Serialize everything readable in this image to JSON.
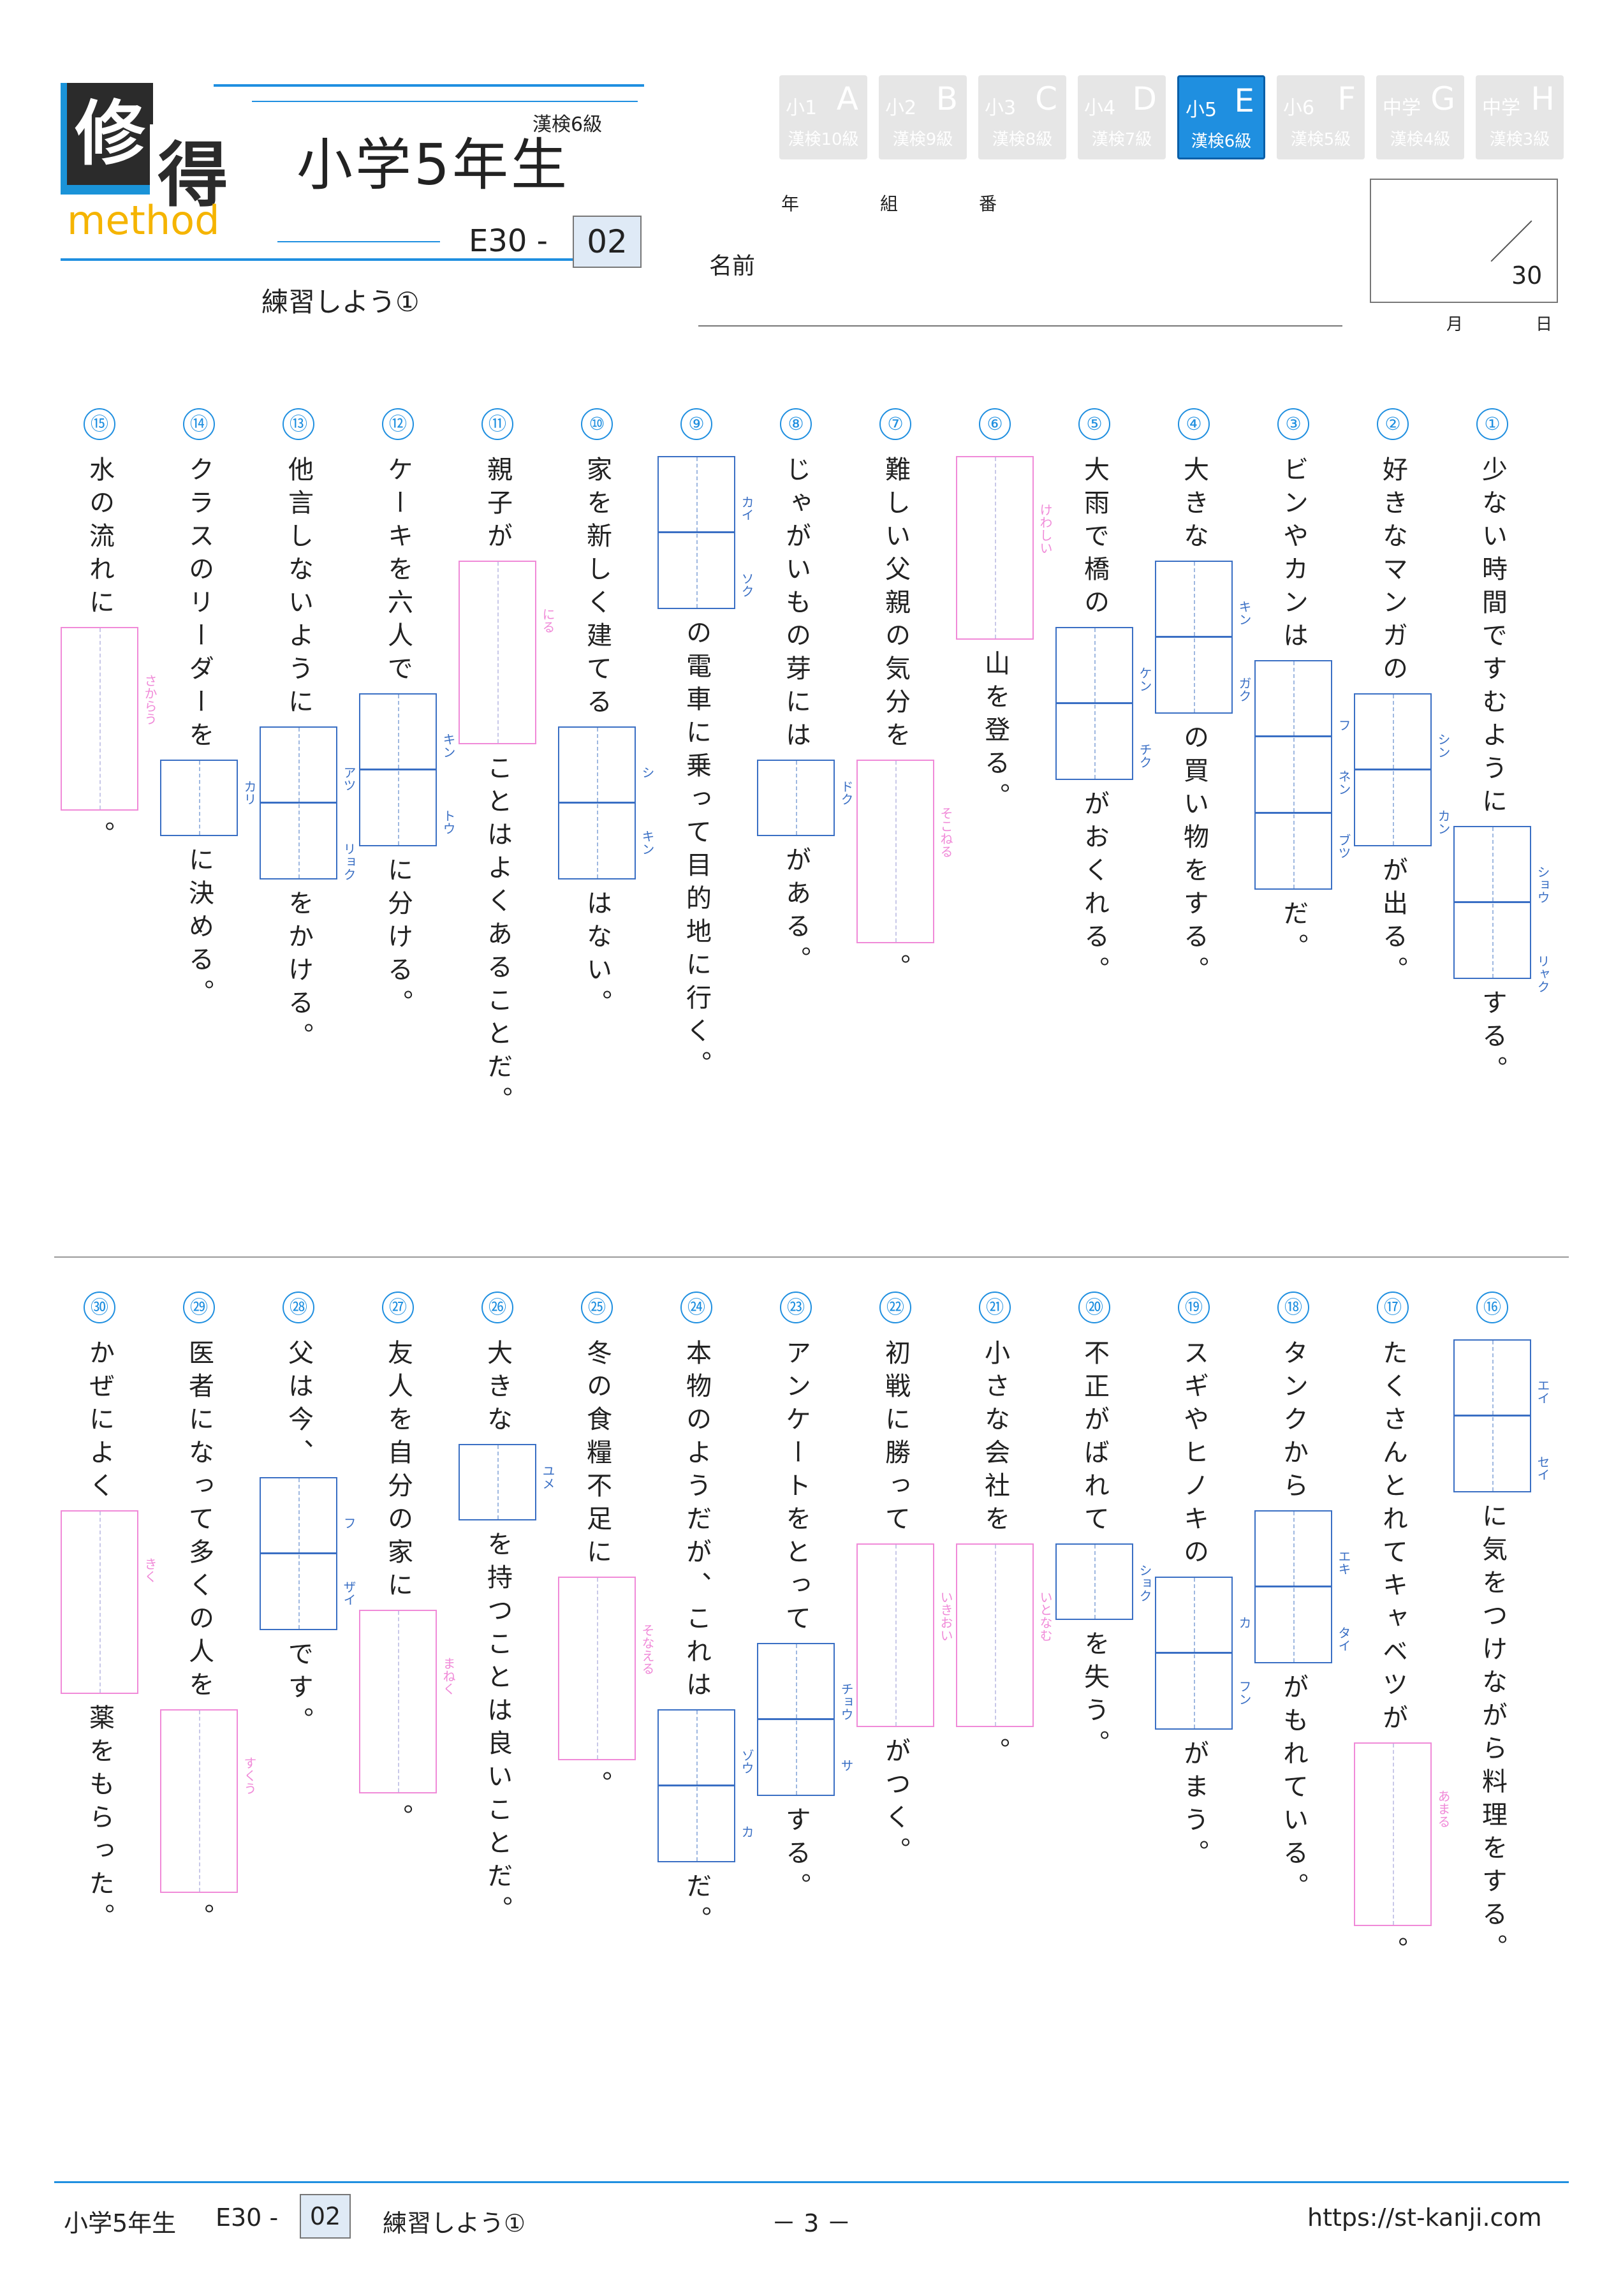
{
  "header": {
    "logo_k1": "修",
    "logo_k2": "得",
    "logo_word": "method",
    "kanken": "漢検6級",
    "grade": "小学5年生",
    "code": "E30 -",
    "code_num": "02",
    "subtitle": "練習しよう①",
    "levels": [
      {
        "g": "小1",
        "L": "A",
        "k": "漢検10級"
      },
      {
        "g": "小2",
        "L": "B",
        "k": "漢検9級"
      },
      {
        "g": "小3",
        "L": "C",
        "k": "漢検8級"
      },
      {
        "g": "小4",
        "L": "D",
        "k": "漢検7級"
      },
      {
        "g": "小5",
        "L": "E",
        "k": "漢検6級"
      },
      {
        "g": "小6",
        "L": "F",
        "k": "漢検5級"
      },
      {
        "g": "中学",
        "L": "G",
        "k": "漢検4級"
      },
      {
        "g": "中学",
        "L": "H",
        "k": "漢検3級"
      }
    ],
    "nen": "年",
    "kumi": "組",
    "ban": "番",
    "name_label": "名前",
    "score_total": "30",
    "month": "月",
    "day": "日"
  },
  "questions": [
    {
      "n": "①",
      "parts": [
        {
          "t": "少ない時間ですむように"
        },
        {
          "box": "k",
          "size": 2,
          "f": "ショウ　　　　リャク"
        },
        {
          "t": "する。"
        }
      ]
    },
    {
      "n": "②",
      "parts": [
        {
          "t": "好きなマンガの"
        },
        {
          "box": "k",
          "size": 2,
          "f": "シン　　　　カン"
        },
        {
          "t": "が出る。"
        }
      ]
    },
    {
      "n": "③",
      "parts": [
        {
          "t": "ビンやカンは"
        },
        {
          "box": "k",
          "size": 3,
          "f": "フ　　　ネン　　　ブツ"
        },
        {
          "t": "だ。"
        }
      ]
    },
    {
      "n": "④",
      "parts": [
        {
          "t": "大きな"
        },
        {
          "box": "k",
          "size": 2,
          "f": "キン　　　　ガク"
        },
        {
          "t": "の買い物をする。"
        }
      ]
    },
    {
      "n": "⑤",
      "parts": [
        {
          "t": "大雨で橋の"
        },
        {
          "box": "k",
          "size": 2,
          "f": "ケン　　　　チク"
        },
        {
          "t": "がおくれる。"
        }
      ]
    },
    {
      "n": "⑥",
      "parts": [
        {
          "box": "h",
          "size": 2.4,
          "f": "けわしい"
        },
        {
          "t": "山を登る。"
        }
      ]
    },
    {
      "n": "⑦",
      "parts": [
        {
          "t": "難しい父親の気分を"
        },
        {
          "box": "h",
          "size": 2.4,
          "f": "そこねる"
        },
        {
          "t": "。"
        }
      ]
    },
    {
      "n": "⑧",
      "parts": [
        {
          "t": "じゃがいもの芽には"
        },
        {
          "box": "k",
          "size": 1,
          "f": "ドク"
        },
        {
          "t": "がある。"
        }
      ]
    },
    {
      "n": "⑨",
      "parts": [
        {
          "box": "k",
          "size": 2,
          "f": "カイ　　　　ソク"
        },
        {
          "t": "の電車に乗って目的地に行く。"
        }
      ]
    },
    {
      "n": "⑩",
      "parts": [
        {
          "t": "家を新しく建てる"
        },
        {
          "box": "k",
          "size": 2,
          "f": "シ　　　　キン"
        },
        {
          "t": "はない。"
        }
      ]
    },
    {
      "n": "⑪",
      "parts": [
        {
          "t": "親子が"
        },
        {
          "box": "h",
          "size": 2.4,
          "f": "にる"
        },
        {
          "t": "ことはよくあることだ。"
        }
      ]
    },
    {
      "n": "⑫",
      "parts": [
        {
          "t": "ケーキを六人で"
        },
        {
          "box": "k",
          "size": 2,
          "f": "キン　　　　トウ"
        },
        {
          "t": "に分ける。"
        }
      ]
    },
    {
      "n": "⑬",
      "parts": [
        {
          "t": "他言しないように"
        },
        {
          "box": "k",
          "size": 2,
          "f": "アツ　　　　リョク"
        },
        {
          "t": "をかける。"
        }
      ]
    },
    {
      "n": "⑭",
      "parts": [
        {
          "t": "クラスのリーダーを"
        },
        {
          "box": "k",
          "size": 1,
          "f": "カリ"
        },
        {
          "t": "に決める。"
        }
      ]
    },
    {
      "n": "⑮",
      "parts": [
        {
          "t": "水の流れに"
        },
        {
          "box": "h",
          "size": 2.4,
          "f": "さからう"
        },
        {
          "t": "。"
        }
      ]
    },
    {
      "n": "⑯",
      "parts": [
        {
          "box": "k",
          "size": 2,
          "f": "エイ　　　　セイ"
        },
        {
          "t": "に気をつけながら料理をする。"
        }
      ]
    },
    {
      "n": "⑰",
      "parts": [
        {
          "t": "たくさんとれてキャベツが"
        },
        {
          "box": "h",
          "size": 2.4,
          "f": "あまる"
        },
        {
          "t": "。"
        }
      ]
    },
    {
      "n": "⑱",
      "parts": [
        {
          "t": "タンクから"
        },
        {
          "box": "k",
          "size": 2,
          "f": "エキ　　　　タイ"
        },
        {
          "t": "がもれている。"
        }
      ]
    },
    {
      "n": "⑲",
      "parts": [
        {
          "t": "スギやヒノキの"
        },
        {
          "box": "k",
          "size": 2,
          "f": "カ　　　　フン"
        },
        {
          "t": "がまう。"
        }
      ]
    },
    {
      "n": "⑳",
      "parts": [
        {
          "t": "不正がばれて"
        },
        {
          "box": "k",
          "size": 1,
          "f": "ショク"
        },
        {
          "t": "を失う。"
        }
      ]
    },
    {
      "n": "㉑",
      "parts": [
        {
          "t": "小さな会社を"
        },
        {
          "box": "h",
          "size": 2.4,
          "f": "いとなむ"
        },
        {
          "t": "。"
        }
      ]
    },
    {
      "n": "㉒",
      "parts": [
        {
          "t": "初戦に勝って"
        },
        {
          "box": "h",
          "size": 2.4,
          "f": "いきおい"
        },
        {
          "t": "がつく。"
        }
      ]
    },
    {
      "n": "㉓",
      "parts": [
        {
          "t": "アンケートをとって"
        },
        {
          "box": "k",
          "size": 2,
          "f": "チョウ　　　サ"
        },
        {
          "t": "する。"
        }
      ]
    },
    {
      "n": "㉔",
      "parts": [
        {
          "t": "本物のようだが、これは"
        },
        {
          "box": "k",
          "size": 2,
          "f": "ゾウ　　　　カ"
        },
        {
          "t": "だ。"
        }
      ]
    },
    {
      "n": "㉕",
      "parts": [
        {
          "t": "冬の食糧不足に"
        },
        {
          "box": "h",
          "size": 2.4,
          "f": "そなえる"
        },
        {
          "t": "。"
        }
      ]
    },
    {
      "n": "㉖",
      "parts": [
        {
          "t": "大きな"
        },
        {
          "box": "k",
          "size": 1,
          "f": "ユメ"
        },
        {
          "t": "を持つことは良いことだ。"
        }
      ]
    },
    {
      "n": "㉗",
      "parts": [
        {
          "t": "友人を自分の家に"
        },
        {
          "box": "h",
          "size": 2.4,
          "f": "まねく"
        },
        {
          "t": "。"
        }
      ]
    },
    {
      "n": "㉘",
      "parts": [
        {
          "t": "父は今、"
        },
        {
          "box": "k",
          "size": 2,
          "f": "フ　　　　ザイ"
        },
        {
          "t": "です。"
        }
      ]
    },
    {
      "n": "㉙",
      "parts": [
        {
          "t": "医者になって多くの人を"
        },
        {
          "box": "h",
          "size": 2.4,
          "f": "すくう"
        },
        {
          "t": "。"
        }
      ]
    },
    {
      "n": "㉚",
      "parts": [
        {
          "t": "かぜによく"
        },
        {
          "box": "h",
          "size": 2.4,
          "f": "きく"
        },
        {
          "t": "薬をもらった。"
        }
      ]
    }
  ],
  "footer": {
    "grade": "小学5年生",
    "code": "E30 -",
    "code_num": "02",
    "title": "練習しよう①",
    "page": "－ 3 －",
    "url": "https://st-kanji.com"
  },
  "colors": {
    "accent": "#1f8fe0",
    "kanji_box": "#3a6fc4",
    "hira_box": "#f08ad8"
  }
}
